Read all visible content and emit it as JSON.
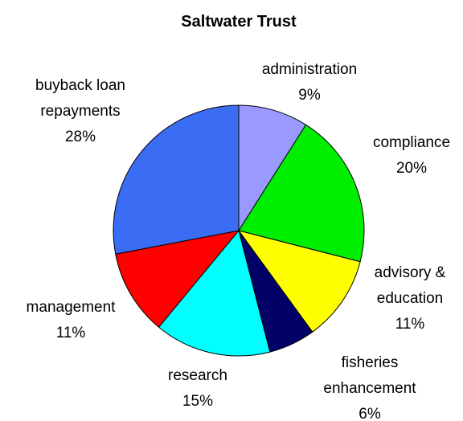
{
  "chart_data": {
    "type": "pie",
    "title": "Saltwater Trust",
    "categories": [
      "administration",
      "compliance",
      "advisory & education",
      "fisheries enhancement",
      "research",
      "management",
      "buyback loan repayments"
    ],
    "values": [
      9,
      20,
      11,
      6,
      15,
      11,
      28
    ],
    "value_labels": [
      "9%",
      "20%",
      "11%",
      "6%",
      "15%",
      "11%",
      "28%"
    ],
    "colors": [
      "#9999ff",
      "#00ee00",
      "#ffff00",
      "#000066",
      "#00ffff",
      "#ff0000",
      "#3a6cf4"
    ]
  }
}
